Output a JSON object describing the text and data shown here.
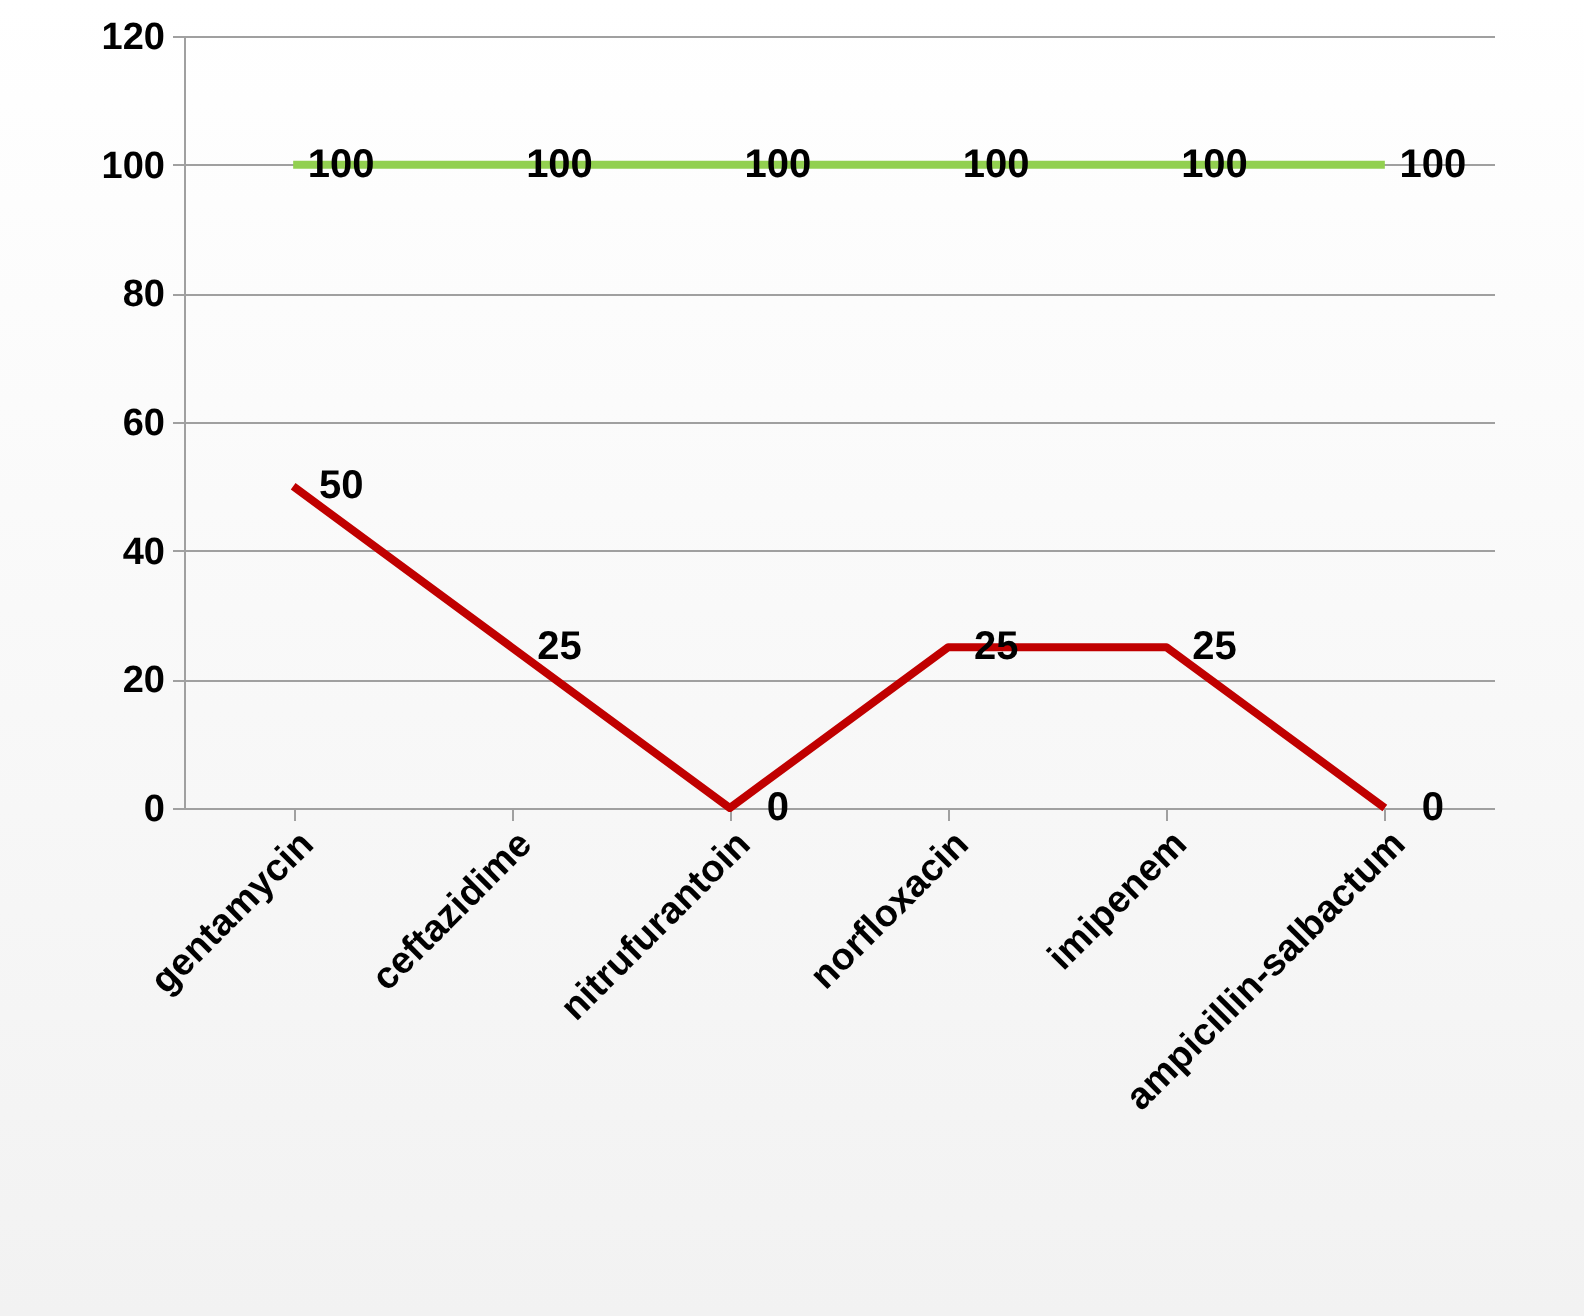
{
  "chart_data": {
    "type": "line",
    "categories": [
      "gentamycin",
      "ceftazidime",
      "nitrufurantoin",
      "norfloxacin",
      "imipenem",
      "ampicillin-salbactum"
    ],
    "series": [
      {
        "color": "#c00000",
        "values": [
          50,
          25,
          0,
          25,
          25,
          0
        ]
      },
      {
        "color": "#92d050",
        "values": [
          100,
          100,
          100,
          100,
          100,
          100
        ]
      }
    ],
    "ylim": [
      0,
      120
    ],
    "yticks": [
      0,
      20,
      40,
      60,
      80,
      100,
      120
    ],
    "grid": "y",
    "data_labels": true,
    "marker": "none",
    "line_style": "solid"
  }
}
